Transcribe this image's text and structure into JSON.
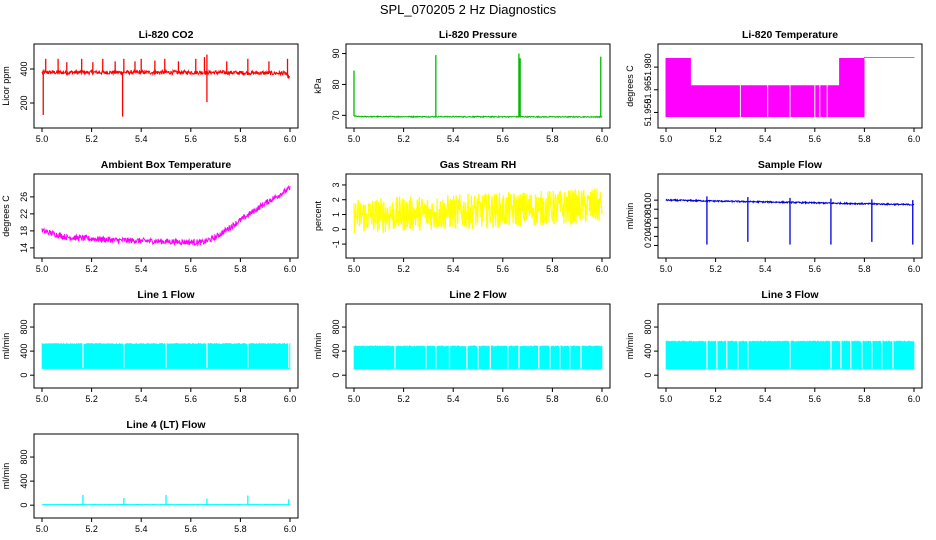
{
  "title": "SPL_070205  2 Hz Diagnostics",
  "chart_data": [
    {
      "type": "line",
      "title": "Li-820 CO2",
      "ylabel": "Licor ppm",
      "color": "#ff0000",
      "xlim": [
        5.0,
        6.0
      ],
      "ylim": [
        100,
        500
      ],
      "xticks": [
        5.0,
        5.2,
        5.4,
        5.6,
        5.8,
        6.0
      ],
      "yticks": [
        200,
        400
      ],
      "series": [
        {
          "baseline": 380,
          "segments": [
            [
              5.0,
              380
            ],
            [
              5.66,
              380
            ],
            [
              5.98,
              375
            ],
            [
              6.0,
              345
            ]
          ],
          "noise": 12,
          "spikes": [
            {
              "x": 5.005,
              "y": 130
            },
            {
              "x": 5.015,
              "y": 460
            },
            {
              "x": 5.065,
              "y": 460
            },
            {
              "x": 5.1,
              "y": 440
            },
            {
              "x": 5.16,
              "y": 460
            },
            {
              "x": 5.205,
              "y": 440
            },
            {
              "x": 5.245,
              "y": 460
            },
            {
              "x": 5.295,
              "y": 445
            },
            {
              "x": 5.325,
              "y": 120
            },
            {
              "x": 5.33,
              "y": 460
            },
            {
              "x": 5.375,
              "y": 445
            },
            {
              "x": 5.4,
              "y": 460
            },
            {
              "x": 5.455,
              "y": 450
            },
            {
              "x": 5.495,
              "y": 460
            },
            {
              "x": 5.55,
              "y": 445
            },
            {
              "x": 5.62,
              "y": 460
            },
            {
              "x": 5.655,
              "y": 470
            },
            {
              "x": 5.665,
              "y": 485
            },
            {
              "x": 5.665,
              "y": 205
            },
            {
              "x": 5.745,
              "y": 445
            },
            {
              "x": 5.83,
              "y": 460
            },
            {
              "x": 5.915,
              "y": 445
            },
            {
              "x": 5.99,
              "y": 460
            }
          ]
        }
      ]
    },
    {
      "type": "line",
      "title": "Li-820 Pressure",
      "ylabel": "kPa",
      "color": "#00bb00",
      "xlim": [
        5.0,
        6.0
      ],
      "ylim": [
        68.5,
        90.5
      ],
      "xticks": [
        5.0,
        5.2,
        5.4,
        5.6,
        5.8,
        6.0
      ],
      "yticks": [
        70,
        80,
        90
      ],
      "series": [
        {
          "segments": [
            [
              5.0,
              69.8
            ],
            [
              5.02,
              69.6
            ],
            [
              6.0,
              69.5
            ]
          ],
          "noise": 0.15,
          "spikes": [
            {
              "x": 5.0,
              "y": 84.5
            },
            {
              "x": 5.33,
              "y": 89.5
            },
            {
              "x": 5.665,
              "y": 90
            },
            {
              "x": 5.67,
              "y": 88.5
            },
            {
              "x": 5.995,
              "y": 89
            }
          ]
        }
      ]
    },
    {
      "type": "line",
      "title": "Li-820 Temperature",
      "ylabel": "degrees C",
      "color": "#ff00ff",
      "xlim": [
        5.0,
        6.0
      ],
      "ylim": [
        51.945,
        51.99
      ],
      "xticks": [
        5.0,
        5.2,
        5.4,
        5.6,
        5.8,
        6.0
      ],
      "yticks": [
        51.95,
        51.965,
        51.98
      ],
      "series": [
        {
          "note_levels": [
            51.947,
            51.968,
            51.986
          ],
          "segments": [
            [
              5.0,
              51.988
            ],
            [
              5.1,
              51.988
            ],
            [
              5.11,
              51.968
            ],
            [
              5.7,
              51.968
            ],
            [
              5.72,
              51.978
            ],
            [
              5.8,
              51.988
            ],
            [
              6.0,
              51.988
            ]
          ]
        }
      ]
    },
    {
      "type": "line",
      "title": "Ambient Box Temperature",
      "ylabel": "degrees C",
      "color": "#ff00ff",
      "xlim": [
        5.0,
        6.0
      ],
      "ylim": [
        13.5,
        29.5
      ],
      "xticks": [
        5.0,
        5.2,
        5.4,
        5.6,
        5.8,
        6.0
      ],
      "yticks": [
        14,
        18,
        22,
        26
      ],
      "series": [
        {
          "segments": [
            [
              5.0,
              18.0
            ],
            [
              5.1,
              16.5
            ],
            [
              5.3,
              15.8
            ],
            [
              5.5,
              15.5
            ],
            [
              5.65,
              15.3
            ],
            [
              5.7,
              16.5
            ],
            [
              5.8,
              20.5
            ],
            [
              5.9,
              24.5
            ],
            [
              6.0,
              28.0
            ]
          ],
          "noise": 0.7
        }
      ]
    },
    {
      "type": "line",
      "title": "Gas Stream RH",
      "ylabel": "percent",
      "color": "#ffff00",
      "xlim": [
        5.0,
        6.0
      ],
      "ylim": [
        -1.4,
        3.2
      ],
      "xticks": [
        5.0,
        5.2,
        5.4,
        5.6,
        5.8,
        6.0
      ],
      "yticks": [
        -1,
        0,
        1,
        2,
        3
      ],
      "series": [
        {
          "segments": [
            [
              5.0,
              0.9
            ],
            [
              5.3,
              1.1
            ],
            [
              5.6,
              1.3
            ],
            [
              6.0,
              1.6
            ]
          ],
          "noise": 1.2
        }
      ]
    },
    {
      "type": "line",
      "title": "Sample Flow",
      "ylabel": "ml/min",
      "color": "#0000dd",
      "xlim": [
        5.0,
        6.0
      ],
      "ylim": [
        -10,
        140
      ],
      "xticks": [
        5.0,
        5.2,
        5.4,
        5.6,
        5.8,
        6.0
      ],
      "yticks": [
        0,
        20,
        40,
        60,
        80,
        100
      ],
      "series": [
        {
          "segments": [
            [
              5.0,
              100
            ],
            [
              6.0,
              90
            ]
          ],
          "noise": 1.5,
          "dips": [
            {
              "x": 5.165,
              "y": 2
            },
            {
              "x": 5.33,
              "y": 8
            },
            {
              "x": 5.5,
              "y": 2
            },
            {
              "x": 5.665,
              "y": 2
            },
            {
              "x": 5.83,
              "y": 8
            },
            {
              "x": 5.995,
              "y": 2
            }
          ]
        }
      ]
    },
    {
      "type": "area",
      "title": "Line 1 Flow",
      "ylabel": "ml/min",
      "color": "#00ffff",
      "xlim": [
        5.0,
        6.0
      ],
      "ylim": [
        -80,
        1050
      ],
      "xticks": [
        5.0,
        5.2,
        5.4,
        5.6,
        5.8,
        6.0
      ],
      "yticks": [
        0,
        400,
        800
      ],
      "series": [
        {
          "low": 110,
          "high": 520,
          "gaps": [
            5.165,
            5.33,
            5.5,
            5.665,
            5.83,
            5.995
          ]
        }
      ]
    },
    {
      "type": "area",
      "title": "Line 2 Flow",
      "ylabel": "ml/min",
      "color": "#00ffff",
      "xlim": [
        5.0,
        6.0
      ],
      "ylim": [
        -80,
        1050
      ],
      "xticks": [
        5.0,
        5.2,
        5.4,
        5.6,
        5.8,
        6.0
      ],
      "yticks": [
        0,
        400,
        800
      ],
      "series": [
        {
          "low": 100,
          "high": 480,
          "gaps": [
            5.165,
            5.29,
            5.33,
            5.385,
            5.455,
            5.5,
            5.55,
            5.62,
            5.665,
            5.745,
            5.79,
            5.83,
            5.87,
            5.915
          ]
        }
      ]
    },
    {
      "type": "area",
      "title": "Line 3 Flow",
      "ylabel": "ml/min",
      "color": "#00ffff",
      "xlim": [
        5.0,
        6.0
      ],
      "ylim": [
        -80,
        1050
      ],
      "xticks": [
        5.0,
        5.2,
        5.4,
        5.6,
        5.8,
        6.0
      ],
      "yticks": [
        0,
        400,
        800
      ],
      "series": [
        {
          "low": 100,
          "high": 560,
          "gaps": [
            5.165,
            5.205,
            5.245,
            5.29,
            5.33,
            5.5,
            5.665,
            5.705,
            5.745,
            5.79,
            5.83,
            5.87,
            5.915
          ]
        }
      ]
    },
    {
      "type": "line",
      "title": "Line 4 (LT) Flow",
      "ylabel": "ml/min",
      "color": "#00ffff",
      "xlim": [
        5.0,
        6.0
      ],
      "ylim": [
        -80,
        1050
      ],
      "xticks": [
        5.0,
        5.2,
        5.4,
        5.6,
        5.8,
        6.0
      ],
      "yticks": [
        0,
        400,
        800
      ],
      "series": [
        {
          "segments": [
            [
              5.0,
              10
            ],
            [
              6.0,
              10
            ]
          ],
          "noise": 3,
          "spikes": [
            {
              "x": 5.165,
              "y": 170
            },
            {
              "x": 5.33,
              "y": 120
            },
            {
              "x": 5.5,
              "y": 170
            },
            {
              "x": 5.665,
              "y": 110
            },
            {
              "x": 5.83,
              "y": 160
            },
            {
              "x": 5.995,
              "y": 100
            }
          ]
        }
      ]
    }
  ]
}
